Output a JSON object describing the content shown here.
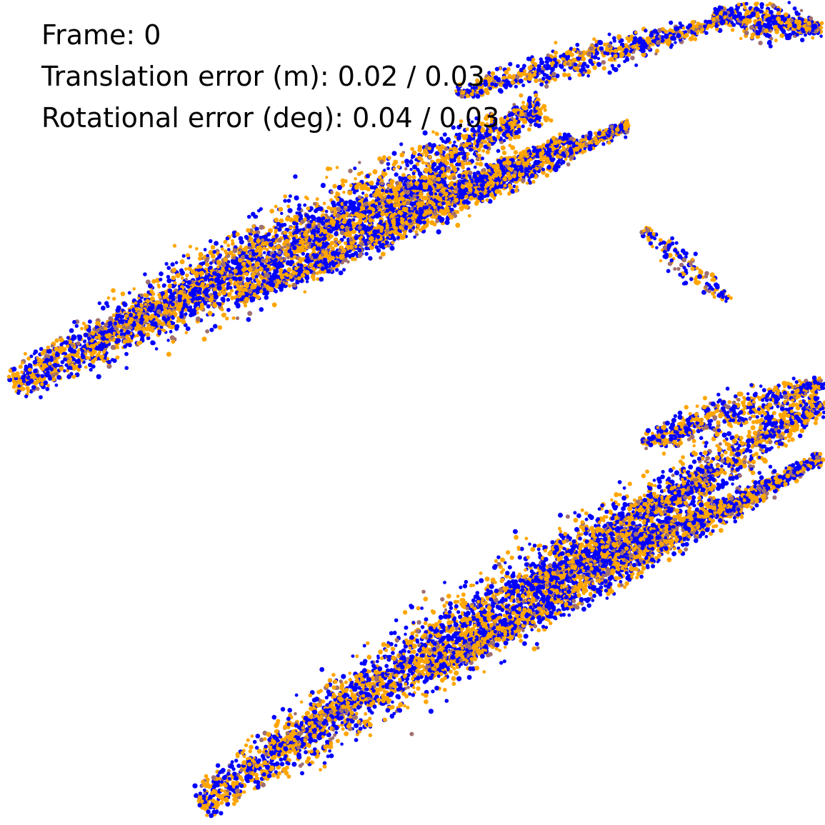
{
  "overlay": {
    "frame_text": "Frame: 0",
    "translation_text": "Translation error (m): 0.02 / 0.03",
    "rotation_text": "Rotational error (deg): 0.04 / 0.03"
  },
  "colors": {
    "background": "#ffffff",
    "source_points": "#0000ff",
    "target_points": "#ffa500",
    "overlap_points": "#a07070",
    "text": "#000000"
  }
}
